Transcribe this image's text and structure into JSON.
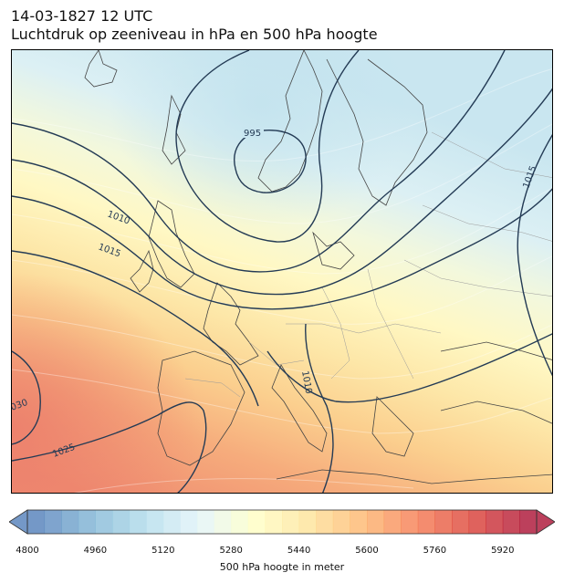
{
  "title": {
    "line1": "14-03-1827 12 UTC",
    "line2": "Luchtdruk op zeeniveau in hPa en 500 hPa hoogte"
  },
  "isobar_labels": [
    "995",
    "1010",
    "1015",
    "1010",
    "1015",
    "1025",
    "030"
  ],
  "colorbar": {
    "label": "500 hPa hoogte in meter",
    "ticks": [
      "4800",
      "4960",
      "5120",
      "5280",
      "5440",
      "5600",
      "5760",
      "5920"
    ],
    "min": 4800,
    "max": 6000,
    "step": 40,
    "extend": "both"
  },
  "colors": {
    "isobar": "#243b55",
    "coastline": "#444444",
    "border": "#9a9a9a"
  }
}
